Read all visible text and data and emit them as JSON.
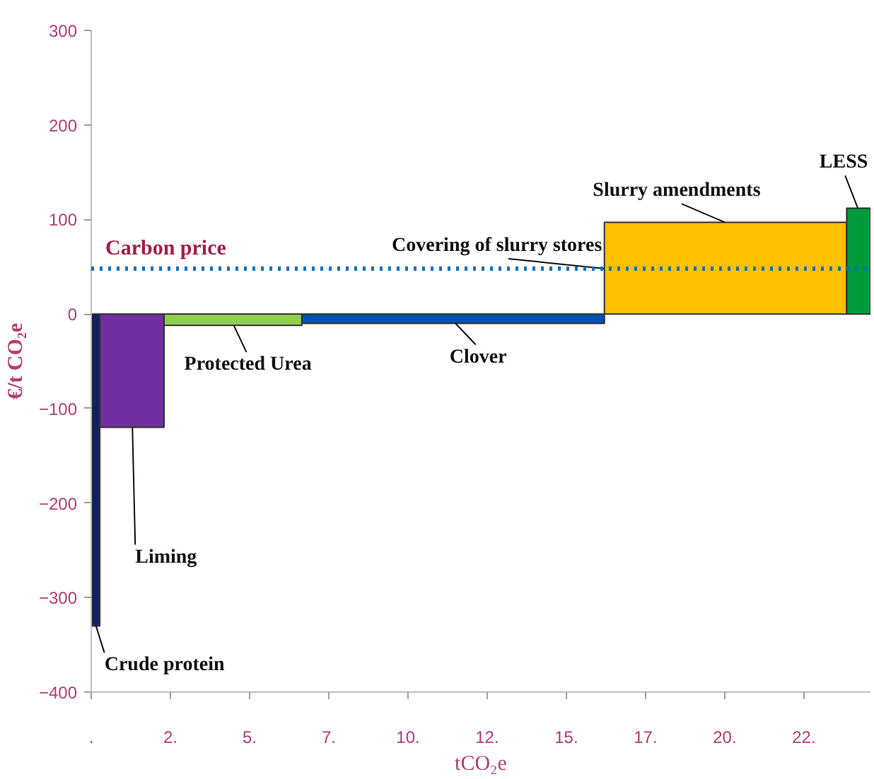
{
  "chart_data": {
    "type": "histogram",
    "ylabel": "€/t CO₂e",
    "xlabel": "tCO₂e",
    "bins": [
      0,
      0.27,
      2.3,
      6.65,
      16.2,
      23.85,
      24.6
    ],
    "values": [
      -330,
      -120,
      -12,
      -10,
      97,
      112
    ],
    "colors": [
      "#14205e",
      "#7030a0",
      "#8fd050",
      "#0050b4",
      "#ffc000",
      "#009a3c"
    ],
    "xlim": [
      0,
      24.6
    ],
    "ylim": [
      -400,
      300
    ],
    "xticks": [
      {
        "value": 0,
        "label": "."
      },
      {
        "value": 2.5,
        "label": "2."
      },
      {
        "value": 5,
        "label": "5."
      },
      {
        "value": 7.5,
        "label": "7."
      },
      {
        "value": 10,
        "label": "10."
      },
      {
        "value": 12.5,
        "label": "12."
      },
      {
        "value": 15,
        "label": "15."
      },
      {
        "value": 17.5,
        "label": "17."
      },
      {
        "value": 20,
        "label": "20."
      },
      {
        "value": 22.5,
        "label": "22."
      }
    ],
    "yticks": [
      -400,
      -300,
      -200,
      -100,
      0,
      100,
      200,
      300
    ],
    "grid": false,
    "ref_lines": [
      {
        "axis": "y",
        "value": 48,
        "label": "Carbon price",
        "color": "#0070c0",
        "line_style": "dotted"
      }
    ],
    "annotations": [
      {
        "text": "Crude protein",
        "x": 0.15,
        "y": -330
      },
      {
        "text": "Liming",
        "x": 1.3,
        "y": -120
      },
      {
        "text": "Protected Urea",
        "x": 4.5,
        "y": -12
      },
      {
        "text": "Clover",
        "x": 11.5,
        "y": -10
      },
      {
        "text": "Covering of slurry stores",
        "x": 16.2,
        "y": 48
      },
      {
        "text": "Slurry amendments",
        "x": 20,
        "y": 97
      },
      {
        "text": "LESS",
        "x": 24.2,
        "y": 112
      }
    ]
  }
}
